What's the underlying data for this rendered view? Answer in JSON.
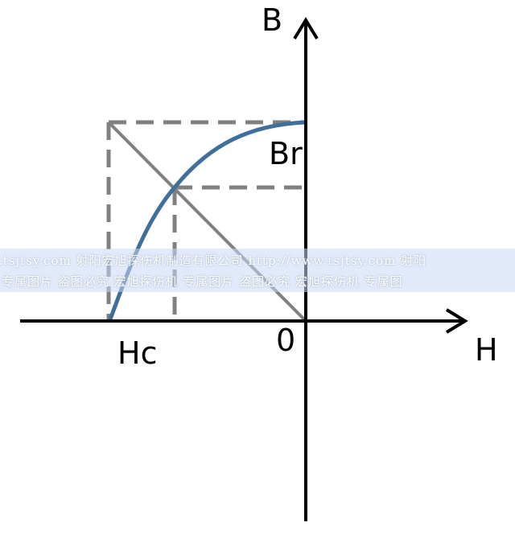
{
  "labels": {
    "b_axis": "B",
    "h_axis": "H",
    "origin": "0",
    "br": "Br",
    "hc": "Hc"
  },
  "colors": {
    "curve": "#3f6f9a",
    "dashed": "#808080",
    "axes": "#000000"
  },
  "watermark": {
    "line1": ".tsjtsy.com 射阳宏旭探伤机制造有限公司  http://www.tsjtsy.com 射阳",
    "line2": "专属图片 盗图必究   宏旭探伤机 专属图片 盗图必究   宏旭探伤机 专属图"
  }
}
